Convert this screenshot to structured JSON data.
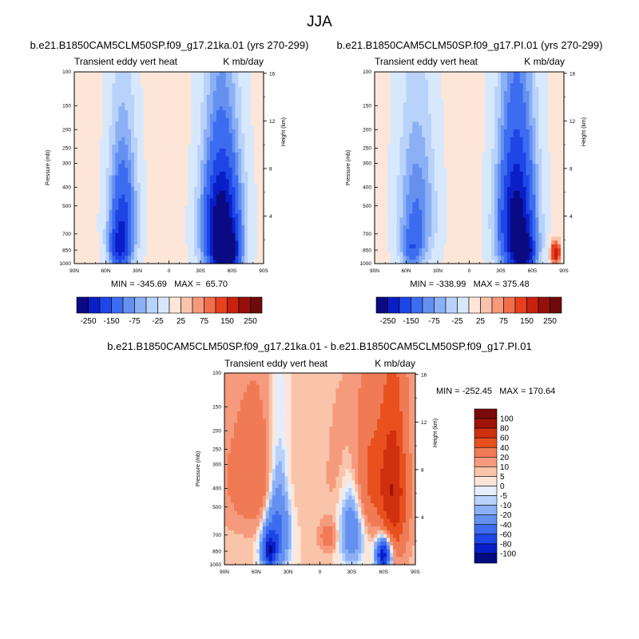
{
  "figure_title": "JJA",
  "colors": {
    "sym12": [
      "#0a0a82",
      "#0a1ec8",
      "#1e46e6",
      "#3c6cf0",
      "#6490f0",
      "#8cb0f5",
      "#b8d2fa",
      "#d8e8fc",
      "#fde6d8",
      "#f9c4aa",
      "#f59a7c",
      "#f06e4c",
      "#e8401e",
      "#c8220e",
      "#96100a",
      "#6e0a0a"
    ],
    "diff": [
      "#000a82",
      "#0a1ec8",
      "#1e46e6",
      "#3c6cf0",
      "#6490f0",
      "#8cb0f5",
      "#b8d2fa",
      "#e4eefc",
      "#fde6d8",
      "#f9c4aa",
      "#f59a7c",
      "#f07a54",
      "#e8501e",
      "#d0300e",
      "#a01408",
      "#780a0a"
    ]
  },
  "chart_data": [
    {
      "type": "contour",
      "name": "panel_21ka",
      "title": "b.e21.B1850CAM5CLM50SP.f09_g17.21ka.01 (yrs 270-299)",
      "left_label": "Transient eddy vert heat",
      "right_label": "K mb/day",
      "ylabel": "Pressure (mb)",
      "y2label": "Height (km)",
      "x_ticks": [
        "90N",
        "60N",
        "30N",
        "0",
        "30S",
        "60S",
        "90S"
      ],
      "x_values": [
        90,
        60,
        30,
        0,
        -30,
        -60,
        -90
      ],
      "p_ticks": [
        100,
        150,
        200,
        250,
        300,
        400,
        500,
        700,
        850,
        1000
      ],
      "z_ticks": [
        4,
        8,
        12,
        16
      ],
      "stats": "MIN = -345.69   MAX =  65.70",
      "colorbar_labels": [
        "-250",
        "-150",
        "-75",
        "-25",
        "25",
        "75",
        "150",
        "250"
      ],
      "features": [
        {
          "lat": 44,
          "p": 600,
          "amp": -180,
          "lat_w": 9,
          "p_w": 300
        },
        {
          "lat": 48,
          "p": 850,
          "amp": -120,
          "lat_w": 6,
          "p_w": 150
        },
        {
          "lat": -50,
          "p": 650,
          "amp": -330,
          "lat_w": 12,
          "p_w": 330
        },
        {
          "lat": -55,
          "p": 880,
          "amp": -200,
          "lat_w": 8,
          "p_w": 120
        }
      ]
    },
    {
      "type": "contour",
      "name": "panel_PI",
      "title": "b.e21.B1850CAM5CLM50SP.f09_g17.PI.01 (yrs 270-299)",
      "left_label": "Transient eddy vert heat",
      "right_label": "K mb/day",
      "ylabel": "Pressure (mb)",
      "y2label": "Height (km)",
      "x_ticks": [
        "90N",
        "60N",
        "30N",
        "0",
        "30S",
        "60S",
        "90S"
      ],
      "x_values": [
        90,
        60,
        30,
        0,
        -30,
        -60,
        -90
      ],
      "p_ticks": [
        100,
        150,
        200,
        250,
        300,
        400,
        500,
        700,
        850,
        1000
      ],
      "z_ticks": [
        4,
        8,
        12,
        16
      ],
      "stats": "MIN = -338.99   MAX = 375.48",
      "colorbar_labels": [
        "-250",
        "-150",
        "-75",
        "-25",
        "25",
        "75",
        "150",
        "250"
      ],
      "features": [
        {
          "lat": 50,
          "p": 550,
          "amp": -110,
          "lat_w": 12,
          "p_w": 320
        },
        {
          "lat": 55,
          "p": 850,
          "amp": -90,
          "lat_w": 6,
          "p_w": 130
        },
        {
          "lat": -45,
          "p": 600,
          "amp": -300,
          "lat_w": 12,
          "p_w": 350
        },
        {
          "lat": -52,
          "p": 880,
          "amp": -220,
          "lat_w": 7,
          "p_w": 120
        },
        {
          "lat": -82,
          "p": 880,
          "amp": 200,
          "lat_w": 3,
          "p_w": 80
        }
      ]
    },
    {
      "type": "contour",
      "name": "panel_diff",
      "title": "b.e21.B1850CAM5CLM50SP.f09_g17.21ka.01 - b.e21.B1850CAM5CLM50SP.f09_g17.PI.01",
      "left_label": "Transient eddy vert heat",
      "right_label": "K mb/day",
      "ylabel": "Pressure (mb)",
      "y2label": "Height (km)",
      "x_ticks": [
        "90N",
        "60N",
        "30N",
        "0",
        "30S",
        "60S",
        "90S"
      ],
      "x_values": [
        90,
        60,
        30,
        0,
        -30,
        -60,
        -90
      ],
      "p_ticks": [
        100,
        150,
        200,
        250,
        300,
        400,
        500,
        700,
        850,
        1000
      ],
      "z_ticks": [
        4,
        8,
        12,
        16
      ],
      "stats": "MIN = -252.45   MAX = 170.64",
      "colorbar_levels": [
        "100",
        "80",
        "60",
        "40",
        "20",
        "10",
        "5",
        "0",
        "-5",
        "-10",
        "-20",
        "-40",
        "-60",
        "-80",
        "-100"
      ],
      "features": [
        {
          "lat": 60,
          "p": 350,
          "amp": 35,
          "lat_w": 20,
          "p_w": 180
        },
        {
          "lat": 40,
          "p": 600,
          "amp": -60,
          "lat_w": 8,
          "p_w": 300
        },
        {
          "lat": 48,
          "p": 850,
          "amp": -80,
          "lat_w": 5,
          "p_w": 140
        },
        {
          "lat": -45,
          "p": 350,
          "amp": 40,
          "lat_w": 18,
          "p_w": 200
        },
        {
          "lat": -30,
          "p": 600,
          "amp": -50,
          "lat_w": 8,
          "p_w": 250
        },
        {
          "lat": -70,
          "p": 450,
          "amp": 60,
          "lat_w": 9,
          "p_w": 300
        },
        {
          "lat": -60,
          "p": 880,
          "amp": -110,
          "lat_w": 5,
          "p_w": 120
        },
        {
          "lat": -8,
          "p": 720,
          "amp": 25,
          "lat_w": 6,
          "p_w": 80
        }
      ]
    }
  ]
}
